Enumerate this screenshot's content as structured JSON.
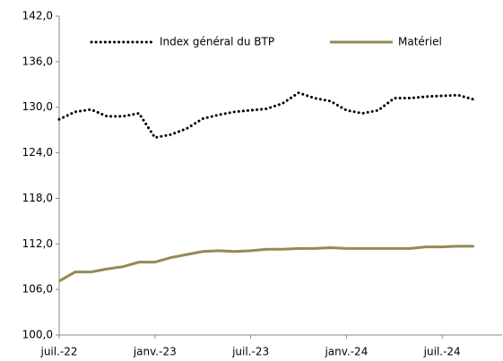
{
  "chart_data": {
    "type": "line",
    "categories": [
      "juil.-22",
      null,
      null,
      null,
      null,
      null,
      "janv.-23",
      null,
      null,
      null,
      null,
      null,
      "juil.-23",
      null,
      null,
      null,
      null,
      null,
      "janv.-24",
      null,
      null,
      null,
      null,
      null,
      "juil.-24",
      null,
      null
    ],
    "series": [
      {
        "name": "Index général du BTP",
        "color": "#000000",
        "dash": "dotted",
        "values": [
          128.4,
          129.4,
          129.7,
          128.8,
          128.8,
          129.2,
          126.0,
          126.4,
          127.2,
          128.5,
          129.0,
          129.4,
          129.6,
          129.8,
          130.5,
          131.9,
          131.2,
          130.8,
          129.6,
          129.2,
          129.6,
          131.2,
          131.2,
          131.4,
          131.5,
          131.6,
          131.0
        ]
      },
      {
        "name": "Matériel",
        "color": "#948a54",
        "dash": "solid",
        "values": [
          107.1,
          108.3,
          108.3,
          108.7,
          109.0,
          109.6,
          109.6,
          110.2,
          110.6,
          111.0,
          111.1,
          111.0,
          111.1,
          111.3,
          111.3,
          111.4,
          111.4,
          111.5,
          111.4,
          111.4,
          111.4,
          111.4,
          111.4,
          111.6,
          111.6,
          111.7,
          111.7
        ]
      }
    ],
    "ylim": [
      100,
      142
    ],
    "yticks": [
      {
        "value": 100,
        "label": "100,0"
      },
      {
        "value": 106,
        "label": "106,0"
      },
      {
        "value": 112,
        "label": "112,0"
      },
      {
        "value": 118,
        "label": "118,0"
      },
      {
        "value": 124,
        "label": "124,0"
      },
      {
        "value": 130,
        "label": "130,0"
      },
      {
        "value": 136,
        "label": "136,0"
      },
      {
        "value": 142,
        "label": "142,0"
      }
    ],
    "grid": false,
    "legend": "top"
  }
}
